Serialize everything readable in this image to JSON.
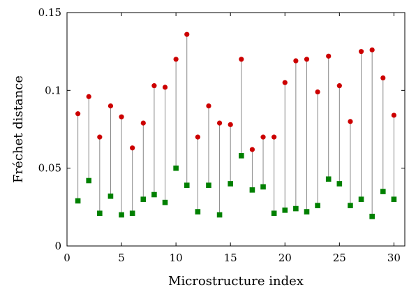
{
  "chart_data": {
    "type": "scatter",
    "xlabel": "Microstructure index",
    "ylabel": "Fréchet distance",
    "xlim": [
      0,
      31
    ],
    "ylim": [
      0,
      0.15
    ],
    "xticks": [
      0,
      5,
      10,
      15,
      20,
      25,
      30
    ],
    "xtick_labels": [
      "0",
      "5",
      "10",
      "15",
      "20",
      "25",
      "30"
    ],
    "yticks": [
      0,
      0.05,
      0.1,
      0.15
    ],
    "ytick_labels": [
      "0",
      "0.05",
      "0.1",
      "0.15"
    ],
    "grid": false,
    "legend": "none",
    "x": [
      1,
      2,
      3,
      4,
      5,
      6,
      7,
      8,
      9,
      10,
      11,
      12,
      13,
      14,
      15,
      16,
      17,
      18,
      19,
      20,
      21,
      22,
      23,
      24,
      25,
      26,
      27,
      28,
      29,
      30
    ],
    "series": [
      {
        "marker": "circle",
        "color": "#cc0000",
        "values": [
          0.085,
          0.096,
          0.07,
          0.09,
          0.083,
          0.063,
          0.079,
          0.103,
          0.102,
          0.12,
          0.136,
          0.07,
          0.09,
          0.079,
          0.078,
          0.12,
          0.062,
          0.07,
          0.07,
          0.105,
          0.119,
          0.12,
          0.099,
          0.122,
          0.103,
          0.08,
          0.125,
          0.126,
          0.108,
          0.084
        ]
      },
      {
        "marker": "square",
        "color": "#008000",
        "values": [
          0.029,
          0.042,
          0.021,
          0.032,
          0.02,
          0.021,
          0.03,
          0.033,
          0.028,
          0.05,
          0.039,
          0.022,
          0.039,
          0.02,
          0.04,
          0.058,
          0.036,
          0.038,
          0.021,
          0.023,
          0.024,
          0.022,
          0.026,
          0.043,
          0.04,
          0.026,
          0.03,
          0.019,
          0.035,
          0.03
        ]
      }
    ],
    "connector_color": "#888888"
  }
}
